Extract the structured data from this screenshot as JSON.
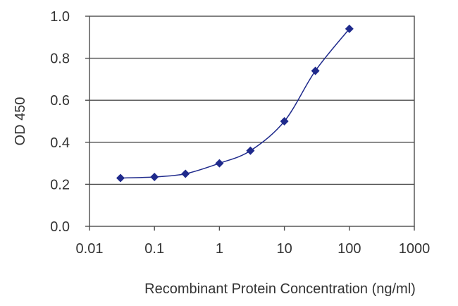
{
  "chart_data": {
    "type": "scatter",
    "title": "",
    "xlabel": "Recombinant Protein Concentration (ng/ml)",
    "ylabel": "OD 450",
    "x_scale": "log",
    "xlim": [
      0.01,
      1000
    ],
    "ylim": [
      0.0,
      1.0
    ],
    "x_ticks": [
      0.01,
      0.1,
      1,
      10,
      100,
      1000
    ],
    "x_tick_labels": [
      "0.01",
      "0.1",
      "1",
      "10",
      "100",
      "1000"
    ],
    "y_ticks": [
      0.0,
      0.2,
      0.4,
      0.6,
      0.8,
      1.0
    ],
    "y_tick_labels": [
      "0.0",
      "0.2",
      "0.4",
      "0.6",
      "0.8",
      "1.0"
    ],
    "grid": "horizontal",
    "legend": "none",
    "colors": {
      "series": "#1f2a8c",
      "grid": "#4d4d4d",
      "axis": "#4d4d4d",
      "text": "#333333"
    },
    "series": [
      {
        "x": [
          0.03,
          0.1,
          0.3,
          1,
          3,
          10,
          30,
          100
        ],
        "y": [
          0.23,
          0.235,
          0.25,
          0.3,
          0.36,
          0.5,
          0.74,
          0.94
        ]
      }
    ]
  }
}
